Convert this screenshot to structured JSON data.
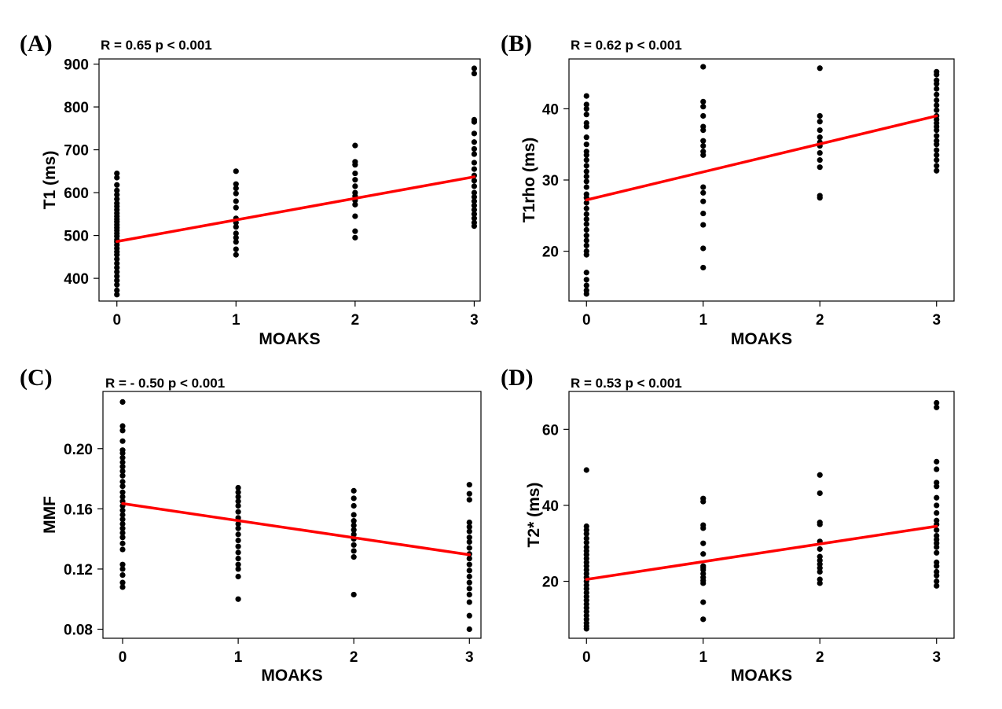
{
  "chart_data": [
    {
      "type": "scatter",
      "panel": "(A)",
      "stat": "R = 0.65 p < 0.001",
      "xlabel": "MOAKS",
      "ylabel": "T1 (ms)",
      "xticks": [
        0,
        1,
        2,
        3
      ],
      "yticks": [
        400,
        500,
        600,
        700,
        800,
        900
      ],
      "xlim": [
        -0.15,
        3.05
      ],
      "ylim": [
        347,
        912
      ],
      "fit": {
        "x": [
          0,
          3
        ],
        "y": [
          486,
          637
        ],
        "color": "#ff0000"
      },
      "points": [
        [
          0,
          645
        ],
        [
          0,
          635
        ],
        [
          0,
          618
        ],
        [
          0,
          605
        ],
        [
          0,
          595
        ],
        [
          0,
          585
        ],
        [
          0,
          575
        ],
        [
          0,
          568
        ],
        [
          0,
          560
        ],
        [
          0,
          552
        ],
        [
          0,
          545
        ],
        [
          0,
          538
        ],
        [
          0,
          532
        ],
        [
          0,
          525
        ],
        [
          0,
          518
        ],
        [
          0,
          512
        ],
        [
          0,
          505
        ],
        [
          0,
          498
        ],
        [
          0,
          490
        ],
        [
          0,
          485
        ],
        [
          0,
          478
        ],
        [
          0,
          470
        ],
        [
          0,
          462
        ],
        [
          0,
          455
        ],
        [
          0,
          445
        ],
        [
          0,
          435
        ],
        [
          0,
          425
        ],
        [
          0,
          415
        ],
        [
          0,
          405
        ],
        [
          0,
          395
        ],
        [
          0,
          385
        ],
        [
          0,
          372
        ],
        [
          0,
          362
        ],
        [
          1,
          650
        ],
        [
          1,
          620
        ],
        [
          1,
          610
        ],
        [
          1,
          598
        ],
        [
          1,
          580
        ],
        [
          1,
          565
        ],
        [
          1,
          540
        ],
        [
          1,
          530
        ],
        [
          1,
          520
        ],
        [
          1,
          505
        ],
        [
          1,
          495
        ],
        [
          1,
          485
        ],
        [
          1,
          468
        ],
        [
          1,
          455
        ],
        [
          2,
          710
        ],
        [
          2,
          672
        ],
        [
          2,
          665
        ],
        [
          2,
          645
        ],
        [
          2,
          630
        ],
        [
          2,
          615
        ],
        [
          2,
          600
        ],
        [
          2,
          592
        ],
        [
          2,
          582
        ],
        [
          2,
          572
        ],
        [
          2,
          545
        ],
        [
          2,
          510
        ],
        [
          2,
          495
        ],
        [
          3,
          890
        ],
        [
          3,
          878
        ],
        [
          3,
          770
        ],
        [
          3,
          765
        ],
        [
          3,
          738
        ],
        [
          3,
          718
        ],
        [
          3,
          702
        ],
        [
          3,
          690
        ],
        [
          3,
          670
        ],
        [
          3,
          655
        ],
        [
          3,
          640
        ],
        [
          3,
          628
        ],
        [
          3,
          615
        ],
        [
          3,
          600
        ],
        [
          3,
          590
        ],
        [
          3,
          580
        ],
        [
          3,
          570
        ],
        [
          3,
          560
        ],
        [
          3,
          550
        ],
        [
          3,
          540
        ],
        [
          3,
          530
        ],
        [
          3,
          522
        ]
      ]
    },
    {
      "type": "scatter",
      "panel": "(B)",
      "stat": "R = 0.62 p < 0.001",
      "xlabel": "MOAKS",
      "ylabel": "T1rho (ms)",
      "xticks": [
        0,
        1,
        2,
        3
      ],
      "yticks": [
        20,
        30,
        40
      ],
      "xlim": [
        -0.15,
        3.15
      ],
      "ylim": [
        13,
        47
      ],
      "fit": {
        "x": [
          0,
          3
        ],
        "y": [
          27.2,
          39.0
        ],
        "color": "#ff0000"
      },
      "points": [
        [
          0,
          41.8
        ],
        [
          0,
          40.6
        ],
        [
          0,
          40.0
        ],
        [
          0,
          39.2
        ],
        [
          0,
          38.0
        ],
        [
          0,
          37.5
        ],
        [
          0,
          36.0
        ],
        [
          0,
          35.0
        ],
        [
          0,
          34.0
        ],
        [
          0,
          33.5
        ],
        [
          0,
          32.8
        ],
        [
          0,
          32.0
        ],
        [
          0,
          31.2
        ],
        [
          0,
          30.5
        ],
        [
          0,
          29.8
        ],
        [
          0,
          29.0
        ],
        [
          0,
          28.0
        ],
        [
          0,
          27.5
        ],
        [
          0,
          26.8
        ],
        [
          0,
          26.0
        ],
        [
          0,
          25.2
        ],
        [
          0,
          24.5
        ],
        [
          0,
          23.8
        ],
        [
          0,
          23.0
        ],
        [
          0,
          22.2
        ],
        [
          0,
          21.5
        ],
        [
          0,
          20.8
        ],
        [
          0,
          20.0
        ],
        [
          0,
          19.5
        ],
        [
          0,
          17.0
        ],
        [
          0,
          16.0
        ],
        [
          0,
          15.2
        ],
        [
          0,
          14.5
        ],
        [
          0,
          14.0
        ],
        [
          1,
          45.9
        ],
        [
          1,
          41.0
        ],
        [
          1,
          40.3
        ],
        [
          1,
          39.0
        ],
        [
          1,
          37.5
        ],
        [
          1,
          37.0
        ],
        [
          1,
          35.5
        ],
        [
          1,
          34.8
        ],
        [
          1,
          34.0
        ],
        [
          1,
          33.5
        ],
        [
          1,
          29.0
        ],
        [
          1,
          28.2
        ],
        [
          1,
          27.0
        ],
        [
          1,
          25.3
        ],
        [
          1,
          23.7
        ],
        [
          1,
          20.4
        ],
        [
          1,
          17.7
        ],
        [
          2,
          45.7
        ],
        [
          2,
          39.0
        ],
        [
          2,
          38.2
        ],
        [
          2,
          37.0
        ],
        [
          2,
          36.0
        ],
        [
          2,
          35.3
        ],
        [
          2,
          34.8
        ],
        [
          2,
          33.8
        ],
        [
          2,
          32.8
        ],
        [
          2,
          31.8
        ],
        [
          2,
          27.8
        ],
        [
          2,
          27.5
        ],
        [
          3,
          45.2
        ],
        [
          3,
          44.8
        ],
        [
          3,
          44.0
        ],
        [
          3,
          43.5
        ],
        [
          3,
          42.8
        ],
        [
          3,
          42.0
        ],
        [
          3,
          41.2
        ],
        [
          3,
          40.5
        ],
        [
          3,
          39.8
        ],
        [
          3,
          39.0
        ],
        [
          3,
          38.5
        ],
        [
          3,
          38.0
        ],
        [
          3,
          37.5
        ],
        [
          3,
          37.0
        ],
        [
          3,
          36.2
        ],
        [
          3,
          35.5
        ],
        [
          3,
          35.0
        ],
        [
          3,
          34.2
        ],
        [
          3,
          33.5
        ],
        [
          3,
          32.8
        ],
        [
          3,
          32.0
        ],
        [
          3,
          31.3
        ]
      ]
    },
    {
      "type": "scatter",
      "panel": "(C)",
      "stat": "R = - 0.50 p < 0.001",
      "xlabel": "MOAKS",
      "ylabel": "MMF",
      "xticks": [
        0,
        1,
        2,
        3
      ],
      "yticks": [
        0.08,
        0.12,
        0.16,
        0.2
      ],
      "ytick_labels": [
        "0.08",
        "0.12",
        "0.16",
        "0.20"
      ],
      "xlim": [
        -0.17,
        3.1
      ],
      "ylim": [
        0.074,
        0.238
      ],
      "fit": {
        "x": [
          0,
          3
        ],
        "y": [
          0.1635,
          0.1295
        ],
        "color": "#ff0000"
      },
      "points": [
        [
          0,
          0.231
        ],
        [
          0,
          0.215
        ],
        [
          0,
          0.212
        ],
        [
          0,
          0.205
        ],
        [
          0,
          0.199
        ],
        [
          0,
          0.197
        ],
        [
          0,
          0.194
        ],
        [
          0,
          0.191
        ],
        [
          0,
          0.188
        ],
        [
          0,
          0.185
        ],
        [
          0,
          0.182
        ],
        [
          0,
          0.178
        ],
        [
          0,
          0.175
        ],
        [
          0,
          0.171
        ],
        [
          0,
          0.168
        ],
        [
          0,
          0.165
        ],
        [
          0,
          0.162
        ],
        [
          0,
          0.159
        ],
        [
          0,
          0.156
        ],
        [
          0,
          0.153
        ],
        [
          0,
          0.15
        ],
        [
          0,
          0.147
        ],
        [
          0,
          0.144
        ],
        [
          0,
          0.141
        ],
        [
          0,
          0.137
        ],
        [
          0,
          0.133
        ],
        [
          0,
          0.123
        ],
        [
          0,
          0.12
        ],
        [
          0,
          0.116
        ],
        [
          0,
          0.111
        ],
        [
          0,
          0.108
        ],
        [
          1,
          0.174
        ],
        [
          1,
          0.171
        ],
        [
          1,
          0.168
        ],
        [
          1,
          0.165
        ],
        [
          1,
          0.162
        ],
        [
          1,
          0.158
        ],
        [
          1,
          0.154
        ],
        [
          1,
          0.15
        ],
        [
          1,
          0.147
        ],
        [
          1,
          0.143
        ],
        [
          1,
          0.139
        ],
        [
          1,
          0.135
        ],
        [
          1,
          0.131
        ],
        [
          1,
          0.127
        ],
        [
          1,
          0.123
        ],
        [
          1,
          0.12
        ],
        [
          1,
          0.115
        ],
        [
          1,
          0.1
        ],
        [
          2,
          0.172
        ],
        [
          2,
          0.167
        ],
        [
          2,
          0.162
        ],
        [
          2,
          0.156
        ],
        [
          2,
          0.152
        ],
        [
          2,
          0.149
        ],
        [
          2,
          0.146
        ],
        [
          2,
          0.143
        ],
        [
          2,
          0.14
        ],
        [
          2,
          0.136
        ],
        [
          2,
          0.132
        ],
        [
          2,
          0.128
        ],
        [
          2,
          0.103
        ],
        [
          3,
          0.176
        ],
        [
          3,
          0.17
        ],
        [
          3,
          0.166
        ],
        [
          3,
          0.151
        ],
        [
          3,
          0.148
        ],
        [
          3,
          0.145
        ],
        [
          3,
          0.141
        ],
        [
          3,
          0.138
        ],
        [
          3,
          0.134
        ],
        [
          3,
          0.13
        ],
        [
          3,
          0.127
        ],
        [
          3,
          0.123
        ],
        [
          3,
          0.119
        ],
        [
          3,
          0.115
        ],
        [
          3,
          0.111
        ],
        [
          3,
          0.107
        ],
        [
          3,
          0.103
        ],
        [
          3,
          0.098
        ],
        [
          3,
          0.089
        ],
        [
          3,
          0.08
        ]
      ]
    },
    {
      "type": "scatter",
      "panel": "(D)",
      "stat": "R = 0.53 p < 0.001",
      "xlabel": "MOAKS",
      "ylabel": "T2* (ms)",
      "xticks": [
        0,
        1,
        2,
        3
      ],
      "yticks": [
        20,
        40,
        60
      ],
      "xlim": [
        -0.15,
        3.15
      ],
      "ylim": [
        5,
        70
      ],
      "fit": {
        "x": [
          0,
          3
        ],
        "y": [
          20.5,
          34.5
        ],
        "color": "#ff0000"
      },
      "points": [
        [
          0,
          49.3
        ],
        [
          0,
          34.5
        ],
        [
          0,
          33.5
        ],
        [
          0,
          32.5
        ],
        [
          0,
          31.3
        ],
        [
          0,
          30.2
        ],
        [
          0,
          29.0
        ],
        [
          0,
          28.0
        ],
        [
          0,
          27.0
        ],
        [
          0,
          26.0
        ],
        [
          0,
          25.0
        ],
        [
          0,
          24.0
        ],
        [
          0,
          23.0
        ],
        [
          0,
          22.0
        ],
        [
          0,
          21.0
        ],
        [
          0,
          20.0
        ],
        [
          0,
          19.0
        ],
        [
          0,
          18.0
        ],
        [
          0,
          17.0
        ],
        [
          0,
          16.0
        ],
        [
          0,
          15.0
        ],
        [
          0,
          14.0
        ],
        [
          0,
          13.0
        ],
        [
          0,
          12.0
        ],
        [
          0,
          11.0
        ],
        [
          0,
          10.0
        ],
        [
          0,
          9.0
        ],
        [
          0,
          8.2
        ],
        [
          0,
          7.5
        ],
        [
          1,
          41.8
        ],
        [
          1,
          41.0
        ],
        [
          1,
          34.8
        ],
        [
          1,
          34.0
        ],
        [
          1,
          30.0
        ],
        [
          1,
          27.2
        ],
        [
          1,
          24.0
        ],
        [
          1,
          23.5
        ],
        [
          1,
          23.0
        ],
        [
          1,
          22.0
        ],
        [
          1,
          21.0
        ],
        [
          1,
          20.2
        ],
        [
          1,
          19.5
        ],
        [
          1,
          14.5
        ],
        [
          1,
          10.0
        ],
        [
          2,
          48.0
        ],
        [
          2,
          43.2
        ],
        [
          2,
          35.5
        ],
        [
          2,
          35.0
        ],
        [
          2,
          30.5
        ],
        [
          2,
          28.5
        ],
        [
          2,
          26.5
        ],
        [
          2,
          25.5
        ],
        [
          2,
          24.5
        ],
        [
          2,
          23.5
        ],
        [
          2,
          22.5
        ],
        [
          2,
          20.5
        ],
        [
          2,
          19.5
        ],
        [
          3,
          67.0
        ],
        [
          3,
          65.8
        ],
        [
          3,
          51.5
        ],
        [
          3,
          49.5
        ],
        [
          3,
          46.0
        ],
        [
          3,
          45.0
        ],
        [
          3,
          42.0
        ],
        [
          3,
          40.0
        ],
        [
          3,
          38.0
        ],
        [
          3,
          36.0
        ],
        [
          3,
          35.0
        ],
        [
          3,
          33.5
        ],
        [
          3,
          32.0
        ],
        [
          3,
          31.0
        ],
        [
          3,
          30.0
        ],
        [
          3,
          29.0
        ],
        [
          3,
          27.5
        ],
        [
          3,
          25.0
        ],
        [
          3,
          24.0
        ],
        [
          3,
          22.5
        ],
        [
          3,
          21.5
        ],
        [
          3,
          20.0
        ],
        [
          3,
          18.8
        ]
      ]
    }
  ]
}
